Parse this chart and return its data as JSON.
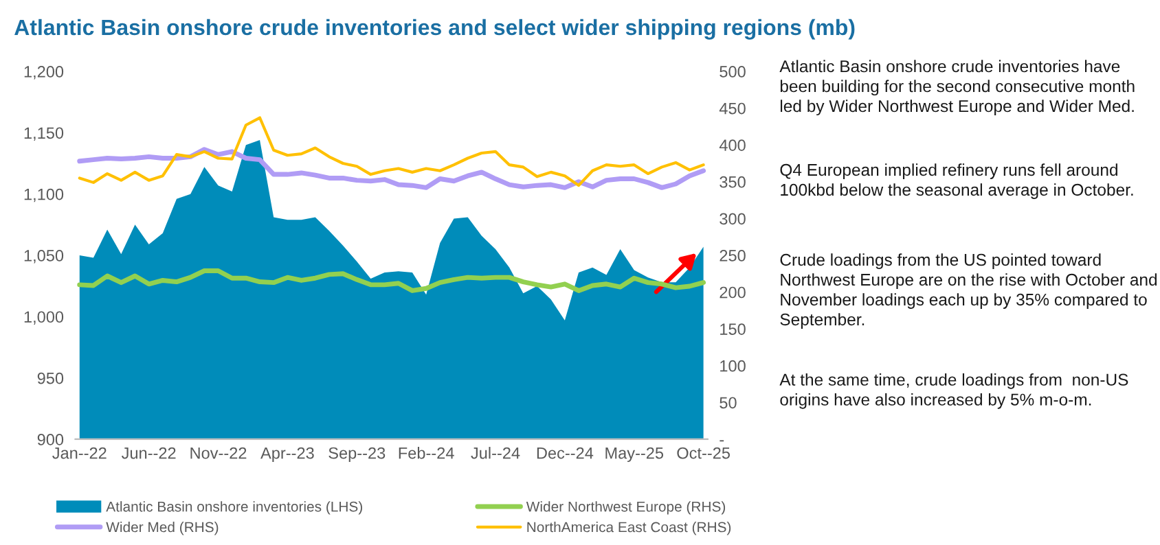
{
  "chart_data": {
    "type": "area",
    "title": "Atlantic Basin onshore crude inventories and select wider shipping regions (mb)",
    "categories": [
      "Jan--22",
      null,
      null,
      null,
      null,
      "Jun--22",
      null,
      null,
      null,
      null,
      "Nov--22",
      null,
      null,
      null,
      null,
      "Apr--23",
      null,
      null,
      null,
      null,
      "Sep--23",
      null,
      null,
      null,
      null,
      "Feb--24",
      null,
      null,
      null,
      null,
      "Jul--24",
      null,
      null,
      null,
      null,
      "Dec--24",
      null,
      null,
      null,
      null,
      "May--25",
      null,
      null,
      null,
      null,
      "Oct--25"
    ],
    "series": [
      {
        "name": "Atlantic Basin onshore inventories (LHS)",
        "color": "#008cba",
        "values": [
          1050,
          1048,
          1071,
          1051,
          1075,
          1059,
          1068,
          1096,
          1100,
          1122,
          1107,
          1102,
          1140,
          1144,
          1081,
          1079,
          1079,
          1081,
          1070,
          1058,
          1045,
          1031,
          1036,
          1037,
          1036,
          1018,
          1060,
          1080,
          1081,
          1066,
          1055,
          1040,
          1019,
          1025,
          1014,
          997,
          1036,
          1040,
          1034,
          1055,
          1038,
          1032,
          1028,
          1028,
          1040,
          1057
        ]
      },
      {
        "name": "Wider Northwest Europe (RHS)",
        "type": "line",
        "axis": "y2",
        "color": "#92d050",
        "values": [
          210,
          209,
          222,
          213,
          222,
          211,
          216,
          214,
          220,
          229,
          229,
          219,
          219,
          214,
          213,
          220,
          216,
          219,
          224,
          225,
          217,
          210,
          210,
          212,
          202,
          205,
          213,
          217,
          220,
          219,
          220,
          220,
          214,
          210,
          207,
          211,
          202,
          209,
          211,
          207,
          219,
          213,
          211,
          206,
          208,
          213
        ]
      },
      {
        "name": "Wider Med (RHS)",
        "type": "line",
        "axis": "y2",
        "color": "#b09cf5",
        "values": [
          378,
          380,
          382,
          381,
          382,
          384,
          382,
          382,
          384,
          394,
          387,
          391,
          382,
          380,
          360,
          360,
          362,
          359,
          355,
          355,
          352,
          351,
          353,
          346,
          345,
          342,
          354,
          351,
          358,
          363,
          354,
          346,
          343,
          345,
          346,
          342,
          350,
          343,
          352,
          354,
          354,
          349,
          342,
          347,
          358,
          365
        ]
      },
      {
        "name": "NorthAmerica East Coast (RHS)",
        "type": "line",
        "axis": "y2",
        "color": "#ffc000",
        "values": [
          355,
          349,
          361,
          352,
          363,
          352,
          358,
          387,
          384,
          391,
          382,
          381,
          427,
          437,
          393,
          386,
          388,
          396,
          384,
          375,
          371,
          360,
          365,
          368,
          363,
          368,
          365,
          373,
          382,
          389,
          391,
          373,
          370,
          357,
          363,
          358,
          345,
          365,
          373,
          371,
          373,
          361,
          370,
          376,
          366,
          373
        ]
      }
    ],
    "ylim": [
      900,
      1200
    ],
    "yticks": [
      {
        "value": 900,
        "label": "900"
      },
      {
        "value": 950,
        "label": "950"
      },
      {
        "value": 1000,
        "label": "1,000"
      },
      {
        "value": 1050,
        "label": "1,050"
      },
      {
        "value": 1100,
        "label": "1,100"
      },
      {
        "value": 1150,
        "label": "1,150"
      },
      {
        "value": 1200,
        "label": "1,200"
      }
    ],
    "y2lim": [
      0,
      500
    ],
    "y2ticks": [
      {
        "value": 0,
        "label": "-"
      },
      50,
      100,
      150,
      200,
      250,
      300,
      350,
      400,
      450,
      500
    ],
    "grid": false,
    "legend": "bottom",
    "annotations": [
      "Atlantic Basin onshore crude inventories have been building for the second consecutive month led by Wider Northwest Europe and Wider Med.",
      "Q4 European implied refinery runs fell around 100kbd below the seasonal average in October.",
      "Crude loadings from the US pointed toward Northwest Europe are on the rise with October and November loadings each up by 35% compared to September.",
      "At the same time, crude loadings from  non-US origins have also increased by 5% m-o-m."
    ]
  }
}
